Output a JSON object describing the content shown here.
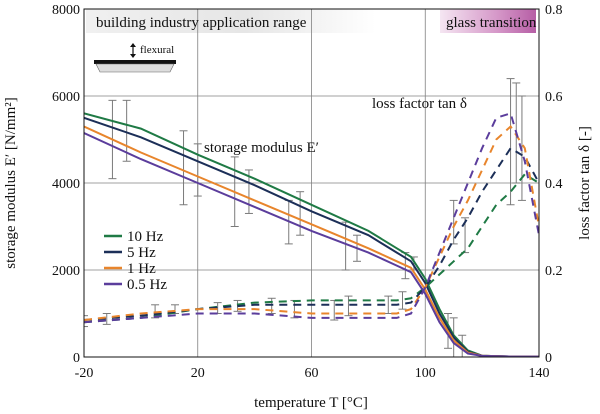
{
  "chart_data": {
    "type": "line",
    "title": "",
    "xlabel": "temperature T [°C]",
    "ylabel_left": "storage modulus E′ [N/mm²]",
    "ylabel_right": "loss factor tan δ [-]",
    "xlim": [
      -20,
      140
    ],
    "ylim_left": [
      0,
      8000
    ],
    "ylim_right": [
      0,
      0.8
    ],
    "x_ticks": [
      "-20",
      "20",
      "60",
      "100",
      "140"
    ],
    "y_ticks_left": [
      "0",
      "2000",
      "4000",
      "6000",
      "8000"
    ],
    "y_ticks_right": [
      "0",
      "0.2",
      "0.4",
      "0.6",
      "0.8"
    ],
    "grid": true,
    "legend_position": "middle-left",
    "annotations": {
      "range_label": "building industry application range",
      "glass_label": "glass transition",
      "flexural_label": "flexural",
      "storage_label": "storage modulus E′",
      "loss_label": "loss factor tan δ"
    },
    "series": [
      {
        "name": "10 Hz",
        "color": "#1f7a45",
        "storage_modulus": {
          "x": [
            -20,
            0,
            20,
            40,
            60,
            80,
            90,
            95,
            100,
            105,
            110,
            115,
            120,
            130,
            140
          ],
          "y": [
            5600,
            5250,
            4650,
            4100,
            3500,
            2900,
            2500,
            2300,
            1800,
            1100,
            500,
            150,
            30,
            10,
            10
          ]
        },
        "loss_factor": {
          "x": [
            -20,
            0,
            20,
            40,
            60,
            80,
            90,
            95,
            100,
            105,
            110,
            115,
            120,
            125,
            130,
            135,
            140
          ],
          "y": [
            0.08,
            0.09,
            0.11,
            0.125,
            0.13,
            0.13,
            0.13,
            0.135,
            0.16,
            0.19,
            0.22,
            0.25,
            0.3,
            0.35,
            0.38,
            0.42,
            0.4
          ]
        }
      },
      {
        "name": "5 Hz",
        "color": "#1c2f58",
        "storage_modulus": {
          "x": [
            -20,
            0,
            20,
            40,
            60,
            80,
            90,
            95,
            100,
            105,
            110,
            115,
            120,
            130,
            140
          ],
          "y": [
            5500,
            5050,
            4500,
            3950,
            3350,
            2800,
            2400,
            2200,
            1700,
            1000,
            450,
            120,
            30,
            10,
            10
          ]
        },
        "loss_factor": {
          "x": [
            -20,
            0,
            20,
            40,
            60,
            80,
            90,
            95,
            100,
            105,
            110,
            115,
            120,
            125,
            130,
            135,
            140
          ],
          "y": [
            0.085,
            0.095,
            0.11,
            0.12,
            0.12,
            0.12,
            0.12,
            0.125,
            0.16,
            0.21,
            0.27,
            0.32,
            0.38,
            0.43,
            0.48,
            0.46,
            0.4
          ]
        }
      },
      {
        "name": "1 Hz",
        "color": "#e8852c",
        "storage_modulus": {
          "x": [
            -20,
            0,
            20,
            40,
            60,
            80,
            90,
            95,
            100,
            105,
            110,
            115,
            120,
            130,
            140
          ],
          "y": [
            5300,
            4700,
            4150,
            3600,
            3050,
            2500,
            2200,
            2050,
            1550,
            900,
            380,
            100,
            30,
            10,
            10
          ]
        },
        "loss_factor": {
          "x": [
            -20,
            0,
            20,
            40,
            60,
            80,
            90,
            95,
            100,
            105,
            110,
            115,
            120,
            125,
            130,
            135,
            140
          ],
          "y": [
            0.085,
            0.1,
            0.11,
            0.11,
            0.1,
            0.1,
            0.1,
            0.11,
            0.16,
            0.23,
            0.3,
            0.36,
            0.43,
            0.5,
            0.53,
            0.48,
            0.3
          ]
        }
      },
      {
        "name": "0.5 Hz",
        "color": "#5b3d9c",
        "storage_modulus": {
          "x": [
            -20,
            0,
            20,
            40,
            60,
            80,
            90,
            95,
            100,
            105,
            110,
            115,
            120,
            130,
            140
          ],
          "y": [
            5150,
            4550,
            4000,
            3450,
            2900,
            2400,
            2100,
            1950,
            1450,
            800,
            320,
            80,
            25,
            10,
            10
          ]
        },
        "loss_factor": {
          "x": [
            -20,
            0,
            20,
            40,
            60,
            80,
            90,
            95,
            100,
            105,
            110,
            115,
            120,
            125,
            130,
            135,
            140
          ],
          "y": [
            0.08,
            0.09,
            0.1,
            0.1,
            0.09,
            0.09,
            0.09,
            0.1,
            0.16,
            0.24,
            0.32,
            0.4,
            0.48,
            0.55,
            0.56,
            0.45,
            0.28
          ]
        }
      }
    ],
    "error_bars": [
      {
        "axis": "left",
        "x": -10,
        "low": 4100,
        "high": 5900
      },
      {
        "axis": "left",
        "x": -5,
        "low": 4500,
        "high": 5900
      },
      {
        "axis": "left",
        "x": 15,
        "low": 3500,
        "high": 5200
      },
      {
        "axis": "left",
        "x": 20,
        "low": 3700,
        "high": 4900
      },
      {
        "axis": "left",
        "x": 33,
        "low": 3000,
        "high": 4600
      },
      {
        "axis": "left",
        "x": 38,
        "low": 3300,
        "high": 4300
      },
      {
        "axis": "left",
        "x": 52,
        "low": 2600,
        "high": 3600
      },
      {
        "axis": "left",
        "x": 56,
        "low": 2800,
        "high": 3800
      },
      {
        "axis": "left",
        "x": 72,
        "low": 2000,
        "high": 3100
      },
      {
        "axis": "left",
        "x": 76,
        "low": 2200,
        "high": 2800
      },
      {
        "axis": "left",
        "x": 93,
        "low": 1800,
        "high": 2400
      },
      {
        "axis": "left",
        "x": 96,
        "low": 2000,
        "high": 2300
      },
      {
        "axis": "left",
        "x": 108,
        "low": 200,
        "high": 1000
      },
      {
        "axis": "left",
        "x": 110,
        "low": 0,
        "high": 900
      },
      {
        "axis": "left",
        "x": 113,
        "low": 0,
        "high": 500
      },
      {
        "axis": "right",
        "x": -20,
        "low": 0.07,
        "high": 0.095
      },
      {
        "axis": "right",
        "x": -12,
        "low": 0.075,
        "high": 0.1
      },
      {
        "axis": "right",
        "x": 5,
        "low": 0.09,
        "high": 0.12
      },
      {
        "axis": "right",
        "x": 12,
        "low": 0.1,
        "high": 0.12
      },
      {
        "axis": "right",
        "x": 27,
        "low": 0.1,
        "high": 0.125
      },
      {
        "axis": "right",
        "x": 34,
        "low": 0.105,
        "high": 0.13
      },
      {
        "axis": "right",
        "x": 46,
        "low": 0.1,
        "high": 0.135
      },
      {
        "axis": "right",
        "x": 54,
        "low": 0.09,
        "high": 0.13
      },
      {
        "axis": "right",
        "x": 68,
        "low": 0.085,
        "high": 0.13
      },
      {
        "axis": "right",
        "x": 73,
        "low": 0.095,
        "high": 0.14
      },
      {
        "axis": "right",
        "x": 87,
        "low": 0.1,
        "high": 0.14
      },
      {
        "axis": "right",
        "x": 92,
        "low": 0.11,
        "high": 0.15
      },
      {
        "axis": "right",
        "x": 110,
        "low": 0.26,
        "high": 0.36
      },
      {
        "axis": "right",
        "x": 114,
        "low": 0.24,
        "high": 0.32
      },
      {
        "axis": "right",
        "x": 130,
        "low": 0.35,
        "high": 0.64
      },
      {
        "axis": "right",
        "x": 132,
        "low": 0.4,
        "high": 0.63
      },
      {
        "axis": "right",
        "x": 134,
        "low": 0.36,
        "high": 0.6
      }
    ]
  }
}
